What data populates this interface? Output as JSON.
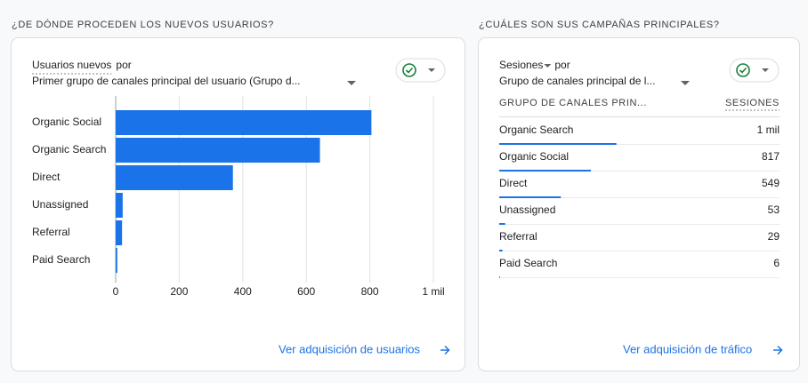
{
  "cards": [
    {
      "heading": "¿DE DÓNDE PROCEDEN LOS NUEVOS USUARIOS?",
      "metric": "Usuarios nuevos",
      "by": "por",
      "dimension": "Primer grupo de canales principal del usuario (Grupo d...",
      "link": "Ver adquisición de usuarios"
    },
    {
      "heading": "¿CUÁLES SON SUS CAMPAÑAS PRINCIPALES?",
      "metric": "Sesiones",
      "by": "por",
      "dimension": "Grupo de canales principal de l...",
      "link": "Ver adquisición de tráfico"
    }
  ],
  "chart_data": [
    {
      "type": "bar",
      "orientation": "horizontal",
      "categories": [
        "Organic Social",
        "Organic Search",
        "Direct",
        "Unassigned",
        "Referral",
        "Paid Search"
      ],
      "values": [
        805,
        643,
        369,
        22,
        20,
        5
      ],
      "color": "#1a73e8",
      "xlim": [
        0,
        1000
      ],
      "xticks": [
        0,
        200,
        400,
        600,
        800,
        {
          "value": 1000,
          "label": "1 mil"
        }
      ],
      "grid": true
    },
    {
      "type": "table",
      "columns": [
        "GRUPO DE CANALES PRIN...",
        "SESIONES"
      ],
      "categories": [
        "Organic Search",
        "Organic Social",
        "Direct",
        "Unassigned",
        "Referral",
        "Paid Search"
      ],
      "values": [
        1045,
        817,
        549,
        53,
        29,
        6
      ],
      "value_labels": [
        "1 mil",
        "817",
        "549",
        "53",
        "29",
        "6"
      ],
      "color": "#1a73e8"
    }
  ]
}
